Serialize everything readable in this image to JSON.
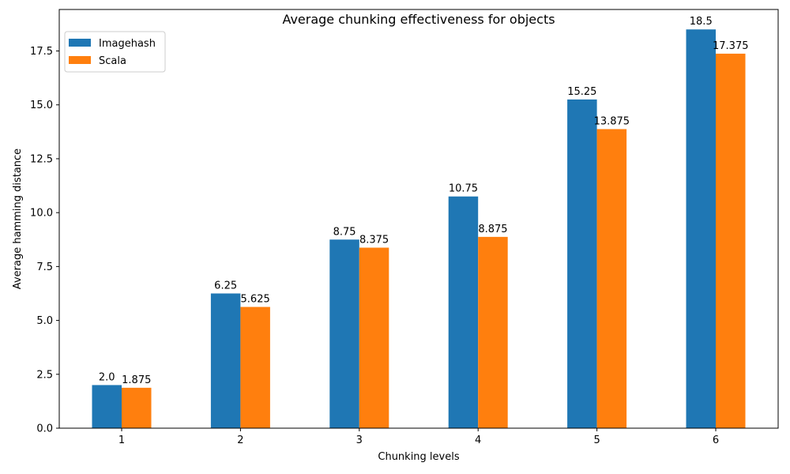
{
  "chart_data": {
    "type": "bar",
    "title": "Average chunking effectiveness for objects",
    "xlabel": "Chunking levels",
    "ylabel": "Average hamming distance",
    "categories": [
      "1",
      "2",
      "3",
      "4",
      "5",
      "6"
    ],
    "series": [
      {
        "name": "Imagehash",
        "values": [
          2.0,
          6.25,
          8.75,
          10.75,
          15.25,
          18.5
        ],
        "labels": [
          "2.0",
          "6.25",
          "8.75",
          "10.75",
          "15.25",
          "18.5"
        ],
        "color": "#1f77b4"
      },
      {
        "name": "Scala",
        "values": [
          1.875,
          5.625,
          8.375,
          8.875,
          13.875,
          17.375
        ],
        "labels": [
          "1.875",
          "5.625",
          "8.375",
          "8.875",
          "13.875",
          "17.375"
        ],
        "color": "#ff7f0e"
      }
    ],
    "ylim": [
      0,
      19.425
    ],
    "yticks": [
      "0.0",
      "2.5",
      "5.0",
      "7.5",
      "10.0",
      "12.5",
      "15.0",
      "17.5"
    ],
    "grid": false,
    "legend_position": "top-left"
  }
}
